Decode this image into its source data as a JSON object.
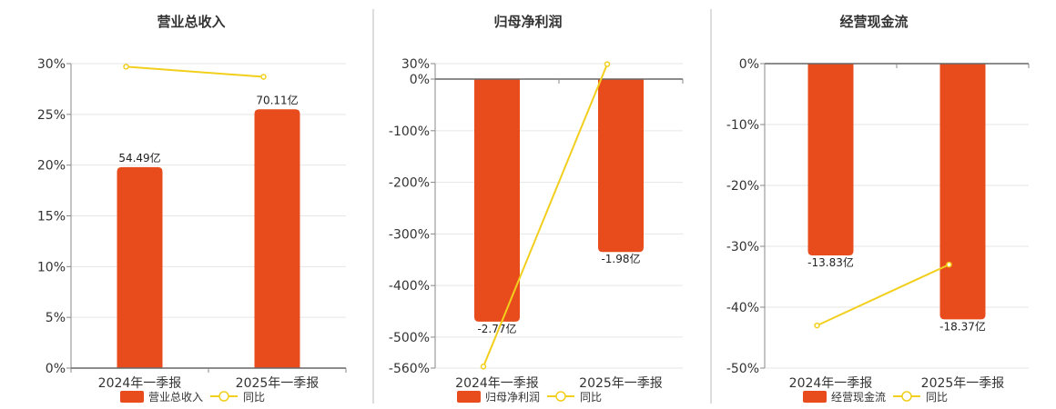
{
  "chart_data": [
    {
      "type": "bar",
      "title": "营业总收入",
      "categories": [
        "2024年一季报",
        "2025年一季报"
      ],
      "ylim": [
        0,
        30
      ],
      "yticks": [
        "30%",
        "25%",
        "20%",
        "15%",
        "10%",
        "5%",
        "0%"
      ],
      "series": [
        {
          "name": "营业总收入",
          "kind": "bar",
          "values": [
            19.8,
            25.5
          ],
          "labels": [
            "54.49亿",
            "70.11亿"
          ],
          "color": "#E84C1C"
        },
        {
          "name": "同比",
          "kind": "line",
          "values": [
            29.7,
            28.7
          ],
          "color": "#F2CF1D"
        }
      ],
      "legend": "bottom",
      "grid": true
    },
    {
      "type": "bar",
      "title": "归母净利润",
      "categories": [
        "2024年一季报",
        "2025年一季报"
      ],
      "ylim": [
        -560,
        30
      ],
      "yticks": [
        "30%",
        "0%",
        "-100%",
        "-200%",
        "-300%",
        "-400%",
        "-500%",
        "-560%"
      ],
      "series": [
        {
          "name": "归母净利润",
          "kind": "bar",
          "values": [
            -470,
            -335
          ],
          "labels": [
            "-2.77亿",
            "-1.98亿"
          ],
          "color": "#E84C1C"
        },
        {
          "name": "同比",
          "kind": "line",
          "values": [
            -557,
            29
          ],
          "color": "#F2CF1D"
        }
      ],
      "legend": "bottom",
      "grid": true
    },
    {
      "type": "bar",
      "title": "经营现金流",
      "categories": [
        "2024年一季报",
        "2025年一季报"
      ],
      "ylim": [
        -50,
        0
      ],
      "yticks": [
        "0%",
        "-10%",
        "-20%",
        "-30%",
        "-40%",
        "-50%"
      ],
      "series": [
        {
          "name": "经营现金流",
          "kind": "bar",
          "values": [
            -31.5,
            -42.0
          ],
          "labels": [
            "-13.83亿",
            "-18.37亿"
          ],
          "color": "#E84C1C"
        },
        {
          "name": "同比",
          "kind": "line",
          "values": [
            -43.0,
            -33.0
          ],
          "color": "#F2CF1D"
        }
      ],
      "legend": "bottom",
      "grid": true
    }
  ]
}
